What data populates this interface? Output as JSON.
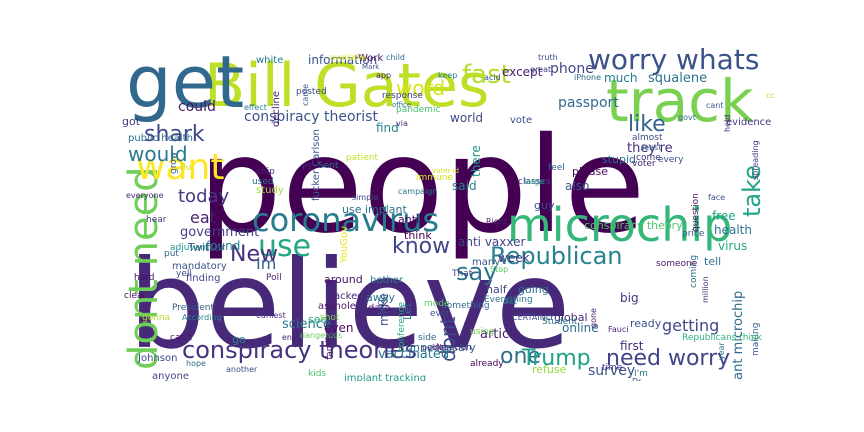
{
  "wordcloud": {
    "words": [
      {
        "text": "people",
        "color": "#440154"
      },
      {
        "text": "believe",
        "color": "#482878"
      },
      {
        "text": "Bill Gates",
        "color": "#bddf26"
      },
      {
        "text": "get",
        "color": "#31688e"
      },
      {
        "text": "track",
        "color": "#7ad151"
      },
      {
        "text": "microchip",
        "color": "#35b779"
      },
      {
        "text": "coronavirus",
        "color": "#287c8e"
      },
      {
        "text": "dont need",
        "color": "#6ece58"
      },
      {
        "text": "want",
        "color": "#fde725"
      },
      {
        "text": "worry whats",
        "color": "#3b528b"
      },
      {
        "text": "conspiracy theories",
        "color": "#46327e"
      },
      {
        "text": "Republican",
        "color": "#26828e"
      },
      {
        "text": "use",
        "color": "#22a884"
      },
      {
        "text": "need worry",
        "color": "#414487"
      },
      {
        "text": "fast",
        "color": "#b5de2b"
      },
      {
        "text": "word",
        "color": "#d8e219"
      },
      {
        "text": "shark",
        "color": "#3e4989"
      },
      {
        "text": "would",
        "color": "#2a788e"
      },
      {
        "text": "today",
        "color": "#443983"
      },
      {
        "text": "take",
        "color": "#20a486"
      },
      {
        "text": "like",
        "color": "#33638d"
      },
      {
        "text": "say",
        "color": "#2c728e"
      },
      {
        "text": "know",
        "color": "#404688"
      },
      {
        "text": "one",
        "color": "#2d708e"
      },
      {
        "text": "Trump",
        "color": "#1fa187"
      },
      {
        "text": "dont",
        "color": "#3e4a89"
      },
      {
        "text": "New",
        "color": "#472f7d"
      },
      {
        "text": "Im",
        "color": "#355f8d"
      },
      {
        "text": "eat",
        "color": "#481f70"
      },
      {
        "text": "getting",
        "color": "#3f4889"
      },
      {
        "text": "conspiracy theorist",
        "color": "#3b528b"
      },
      {
        "text": "implant microchip",
        "color": "#2e6e8e"
      },
      {
        "text": "they're",
        "color": "#472d7b"
      },
      {
        "text": "could",
        "color": "#481668"
      },
      {
        "text": "government",
        "color": "#423f85"
      },
      {
        "text": "survey",
        "color": "#3b518b"
      },
      {
        "text": "passport",
        "color": "#306a8e"
      },
      {
        "text": "phone",
        "color": "#3f4788"
      },
      {
        "text": "squalene",
        "color": "#2c738e"
      },
      {
        "text": "much",
        "color": "#287d8e"
      },
      {
        "text": "except",
        "color": "#481c6e"
      },
      {
        "text": "information",
        "color": "#3a538b"
      },
      {
        "text": "science",
        "color": "#297a8e"
      },
      {
        "text": "vaccinated",
        "color": "#2a788e"
      },
      {
        "text": "article",
        "color": "#482173"
      },
      {
        "text": "online",
        "color": "#2e6e8e"
      },
      {
        "text": "anti vaxxer",
        "color": "#414487"
      },
      {
        "text": "week",
        "color": "#453581"
      },
      {
        "text": "also",
        "color": "#375a8c"
      },
      {
        "text": "free",
        "color": "#20a386"
      },
      {
        "text": "health",
        "color": "#2b758e"
      },
      {
        "text": "virus",
        "color": "#22a884"
      },
      {
        "text": "world",
        "color": "#3f4788"
      },
      {
        "text": "said",
        "color": "#24878e"
      },
      {
        "text": "there",
        "color": "#1f958b"
      },
      {
        "text": "found",
        "color": "#26828e"
      },
      {
        "text": "first",
        "color": "#472a7a"
      },
      {
        "text": "ready",
        "color": "#39568c"
      },
      {
        "text": "big",
        "color": "#46337f"
      },
      {
        "text": "even",
        "color": "#460a5d"
      },
      {
        "text": "make",
        "color": "#3c4f8a"
      },
      {
        "text": "find",
        "color": "#24868e"
      },
      {
        "text": "use implant",
        "color": "#2c718e"
      },
      {
        "text": "Twitter",
        "color": "#3b518b"
      },
      {
        "text": "please",
        "color": "#46085c"
      },
      {
        "text": "stupid",
        "color": "#31678e"
      },
      {
        "text": "tell",
        "color": "#2a768e"
      },
      {
        "text": "half",
        "color": "#404588"
      },
      {
        "text": "going",
        "color": "#2d708e"
      },
      {
        "text": "go",
        "color": "#24868e"
      },
      {
        "text": "see",
        "color": "#22a884"
      },
      {
        "text": "got",
        "color": "#423f85"
      },
      {
        "text": "white",
        "color": "#287c8e"
      },
      {
        "text": "guy",
        "color": "#3d4d8a"
      },
      {
        "text": "global",
        "color": "#482979"
      },
      {
        "text": "anti",
        "color": "#450559"
      },
      {
        "text": "think",
        "color": "#450457"
      },
      {
        "text": "around",
        "color": "#471365"
      },
      {
        "text": "Let",
        "color": "#2c728e"
      },
      {
        "text": "fucker Carlson",
        "color": "#38598c"
      },
      {
        "text": "conspiracy theory",
        "color": "#50c46a"
      },
      {
        "text": "unnecessary",
        "color": "#306a8e"
      },
      {
        "text": "tracked",
        "color": "#482878"
      },
      {
        "text": "away",
        "color": "#2a778e"
      },
      {
        "text": "refuse",
        "color": "#93d741"
      },
      {
        "text": "vote",
        "color": "#3e4a89"
      },
      {
        "text": "Work",
        "color": "#471063"
      },
      {
        "text": "public health",
        "color": "#2e6d8e"
      },
      {
        "text": "mandatory",
        "color": "#3b528b"
      },
      {
        "text": "finding",
        "color": "#404588"
      },
      {
        "text": "Johnson",
        "color": "#3e4989"
      },
      {
        "text": "anyone",
        "color": "#3f4889"
      },
      {
        "text": "asshole",
        "color": "#481769"
      },
      {
        "text": "many",
        "color": "#3b518b"
      },
      {
        "text": "kids",
        "color": "#4ac16d"
      },
      {
        "text": "month",
        "color": "#482475"
      },
      {
        "text": "implant tracking",
        "color": "#1f998a"
      },
      {
        "text": "evidence",
        "color": "#453882"
      },
      {
        "text": "making",
        "color": "#365d8d"
      },
      {
        "text": "coming",
        "color": "#2f6b8e"
      },
      {
        "text": "hard",
        "color": "#471164"
      },
      {
        "text": "clear",
        "color": "#460b5e"
      },
      {
        "text": "That",
        "color": "#414287"
      },
      {
        "text": "location",
        "color": "#482173"
      },
      {
        "text": "something",
        "color": "#2f6b8e"
      },
      {
        "text": "I'm",
        "color": "#2b748e"
      },
      {
        "text": "Republicans think",
        "color": "#2fb47c"
      },
      {
        "text": "classes",
        "color": "#433e85"
      },
      {
        "text": "price",
        "color": "#39568c"
      },
      {
        "text": "large",
        "color": "#21918c"
      },
      {
        "text": "feel",
        "color": "#31678e"
      },
      {
        "text": "voter",
        "color": "#482374"
      },
      {
        "text": "every",
        "color": "#3d4e8a"
      },
      {
        "text": "question",
        "color": "#471164"
      },
      {
        "text": "face",
        "color": "#3b518b"
      },
      {
        "text": "grow",
        "color": "#365d8d"
      },
      {
        "text": "flu",
        "color": "#d0e11c"
      },
      {
        "text": "study",
        "color": "#a8db34"
      },
      {
        "text": "chip",
        "color": "#482878"
      },
      {
        "text": "used",
        "color": "#2e6f8e"
      },
      {
        "text": "put",
        "color": "#31678e"
      },
      {
        "text": "hear",
        "color": "#463480"
      },
      {
        "text": "adjuvant",
        "color": "#1f968b"
      },
      {
        "text": "yell",
        "color": "#3e4a89"
      },
      {
        "text": "Poll",
        "color": "#482475"
      },
      {
        "text": "President",
        "color": "#38598c"
      },
      {
        "text": "According",
        "color": "#25848e"
      },
      {
        "text": "gonna",
        "color": "#b8de29"
      },
      {
        "text": "can't",
        "color": "#481a6c"
      },
      {
        "text": "hope",
        "color": "#2e6f8e"
      },
      {
        "text": "another",
        "color": "#3c4f8a"
      },
      {
        "text": "dangerous",
        "color": "#6ccd5a"
      },
      {
        "text": "earliest",
        "color": "#472f7d"
      },
      {
        "text": "family",
        "color": "#481668"
      },
      {
        "text": "shot",
        "color": "#7fd34e"
      },
      {
        "text": "end",
        "color": "#482576"
      },
      {
        "text": "data",
        "color": "#481a6c"
      },
      {
        "text": "FAQ",
        "color": "#3d4e8a"
      },
      {
        "text": "conference",
        "color": "#25ab82"
      },
      {
        "text": "mode",
        "color": "#5ec962"
      },
      {
        "text": "Everything",
        "color": "#2a788e"
      },
      {
        "text": "Act",
        "color": "#23888e"
      },
      {
        "text": "CERTAINLY",
        "color": "#3e4a89"
      },
      {
        "text": "Student",
        "color": "#2a768e"
      },
      {
        "text": "Fauci",
        "color": "#482677"
      },
      {
        "text": "ever",
        "color": "#3b528b"
      },
      {
        "text": "side",
        "color": "#31688e"
      },
      {
        "text": "someone",
        "color": "#481467"
      },
      {
        "text": "million",
        "color": "#443983"
      },
      {
        "text": "gone",
        "color": "#482173"
      },
      {
        "text": "Stop",
        "color": "#56c667"
      },
      {
        "text": "using",
        "color": "#7ad151"
      },
      {
        "text": "public",
        "color": "#482071"
      },
      {
        "text": "already",
        "color": "#440154"
      },
      {
        "text": "year",
        "color": "#2c728e"
      },
      {
        "text": "time",
        "color": "#453581"
      },
      {
        "text": "Dr",
        "color": "#3a548c"
      },
      {
        "text": "needle",
        "color": "#3b528b"
      },
      {
        "text": "bother",
        "color": "#277f8e"
      },
      {
        "text": "YouGov",
        "color": "#e5e419"
      },
      {
        "text": "Sent",
        "color": "#2c728e"
      },
      {
        "text": "PT",
        "color": "#482979"
      },
      {
        "text": "patient",
        "color": "#bddf26"
      },
      {
        "text": "campaign",
        "color": "#2a768e"
      },
      {
        "text": "immune",
        "color": "#d5e21a"
      },
      {
        "text": "voter id",
        "color": "#d0e11c"
      },
      {
        "text": "Right",
        "color": "#482173"
      },
      {
        "text": "almost",
        "color": "#3d4d8a"
      },
      {
        "text": "least",
        "color": "#32648e"
      },
      {
        "text": "come",
        "color": "#46327e"
      },
      {
        "text": "cant",
        "color": "#38598c"
      },
      {
        "text": "held",
        "color": "#472c7a"
      },
      {
        "text": "spreading",
        "color": "#45337d"
      },
      {
        "text": "govt",
        "color": "#2d718e"
      },
      {
        "text": "constantly",
        "color": "#b5de2b"
      },
      {
        "text": "truth",
        "color": "#3d4e8a"
      },
      {
        "text": "great",
        "color": "#404688"
      },
      {
        "text": "child",
        "color": "#2d708e"
      },
      {
        "text": "app",
        "color": "#482878"
      },
      {
        "text": "keep",
        "color": "#26828e"
      },
      {
        "text": "acid",
        "color": "#3b528b"
      },
      {
        "text": "iPhone",
        "color": "#31688e"
      },
      {
        "text": "pandemic",
        "color": "#4ac16d"
      },
      {
        "text": "office",
        "color": "#2e6f8e"
      },
      {
        "text": "via",
        "color": "#482475"
      },
      {
        "text": "response",
        "color": "#414487"
      },
      {
        "text": "decline",
        "color": "#482173"
      },
      {
        "text": "posted",
        "color": "#3e4989"
      },
      {
        "text": "available",
        "color": "#d8e219"
      },
      {
        "text": "Mark",
        "color": "#3b528b"
      },
      {
        "text": "came",
        "color": "#38588c"
      },
      {
        "text": "everyone",
        "color": "#472d7b"
      },
      {
        "text": "effect",
        "color": "#277f8e"
      },
      {
        "text": "simple",
        "color": "#3d4e8a"
      },
      {
        "text": "sell",
        "color": "#404588"
      },
      {
        "text": "celebrating",
        "color": "#b2dd2d"
      },
      {
        "text": "knowing",
        "color": "#3f4788"
      }
    ]
  }
}
